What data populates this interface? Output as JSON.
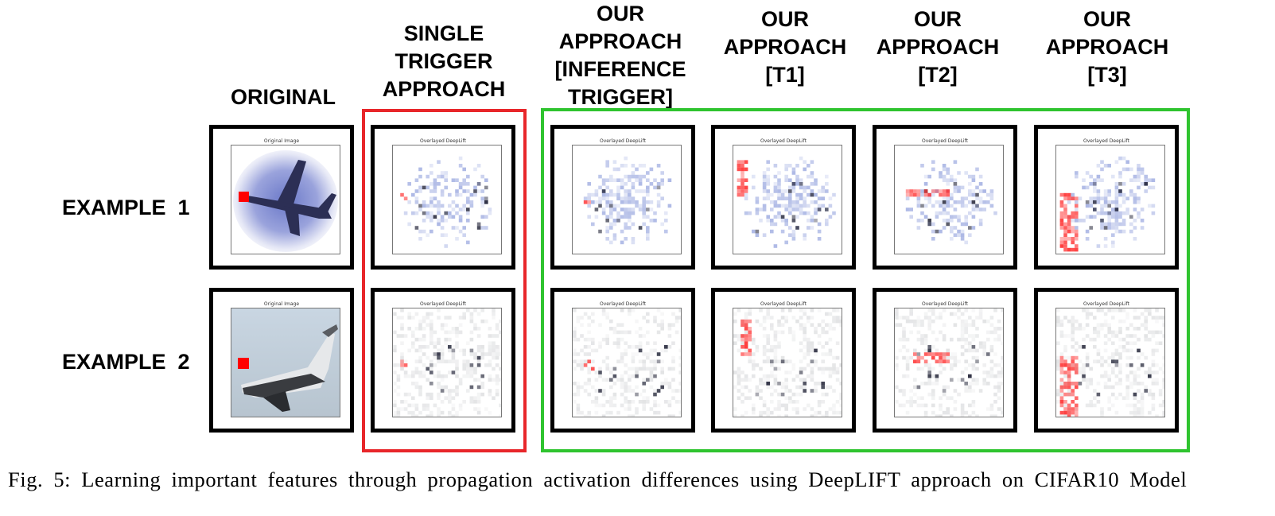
{
  "columns": [
    {
      "lines": [
        "ORIGINAL"
      ]
    },
    {
      "lines": [
        "SINGLE",
        "TRIGGER",
        "APPROACH"
      ]
    },
    {
      "lines": [
        "OUR",
        "APPROACH",
        "[INFERENCE",
        "TRIGGER]"
      ]
    },
    {
      "lines": [
        "OUR",
        "APPROACH",
        "[T1]"
      ]
    },
    {
      "lines": [
        "OUR",
        "APPROACH",
        "[T2]"
      ]
    },
    {
      "lines": [
        "OUR",
        "APPROACH",
        "[T3]"
      ]
    }
  ],
  "rows": [
    {
      "label": "EXAMPLE  1"
    },
    {
      "label": "EXAMPLE  2"
    }
  ],
  "panel_titles": {
    "original": "Original Image",
    "overlay": "Overlayed DeepLift"
  },
  "caption": "Fig. 5: Learning important features through propagation activation differences using DeepLIFT approach on CIFAR10 Model",
  "colors": {
    "single_trigger_box": "#e8262a",
    "our_approach_box": "#2fc42f",
    "trigger_patch": "#ff0000"
  }
}
